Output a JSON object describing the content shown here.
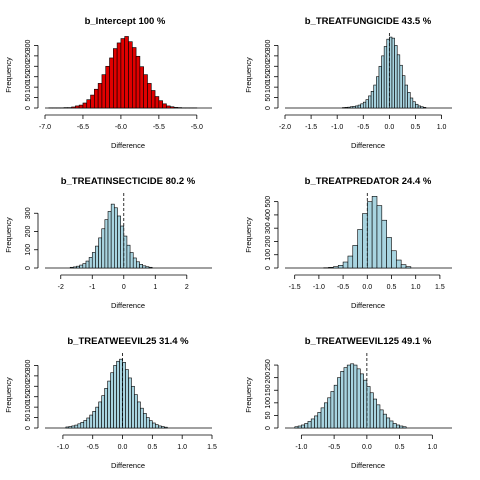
{
  "chart_data": [
    {
      "type": "bar",
      "title": "b_Intercept   100  %",
      "xlabel": "Difference",
      "ylabel": "Frequency",
      "xlim": [
        -7.0,
        -4.8
      ],
      "ylim": [
        0,
        350
      ],
      "xticks": [
        -7.0,
        -6.5,
        -6.0,
        -5.5,
        -5.0
      ],
      "xtick_labels": [
        "-7.0",
        "-6.5",
        "-6.0",
        "-5.5",
        "-5.0"
      ],
      "yticks": [
        0,
        50,
        100,
        150,
        200,
        250,
        300
      ],
      "ytick_labels": [
        "0",
        "50",
        "100",
        "150",
        "200",
        "250",
        "300"
      ],
      "bin_start": -6.95,
      "bin_width": 0.05,
      "counts": [
        1,
        1,
        1,
        1,
        2,
        2,
        5,
        10,
        14,
        24,
        40,
        62,
        90,
        118,
        160,
        200,
        240,
        285,
        312,
        333,
        343,
        318,
        290,
        248,
        198,
        160,
        118,
        84,
        55,
        35,
        20,
        10,
        6,
        3,
        2,
        1,
        1,
        1,
        1
      ],
      "bar_color": "#e00000",
      "dashed_line_at": null
    },
    {
      "type": "bar",
      "title": "b_TREATFUNGICIDE   43.5  %",
      "xlabel": "Difference",
      "ylabel": "Frequency",
      "xlim": [
        -2.0,
        1.2
      ],
      "ylim": [
        0,
        350
      ],
      "xticks": [
        -2.0,
        -1.5,
        -1.0,
        -0.5,
        0.0,
        0.5,
        1.0
      ],
      "xtick_labels": [
        "-2.0",
        "-1.5",
        "-1.0",
        "-0.5",
        "0.0",
        "0.5",
        "1.0"
      ],
      "yticks": [
        0,
        50,
        100,
        150,
        200,
        250,
        300
      ],
      "ytick_labels": [
        "0",
        "50",
        "100",
        "150",
        "200",
        "250",
        "300"
      ],
      "bin_start": -0.9,
      "bin_width": 0.05,
      "counts": [
        2,
        3,
        4,
        6,
        8,
        10,
        14,
        20,
        28,
        40,
        58,
        80,
        110,
        150,
        200,
        250,
        295,
        330,
        340,
        335,
        300,
        255,
        205,
        155,
        110,
        75,
        48,
        30,
        18,
        10,
        6,
        3
      ],
      "bar_color": "#a8d4e0",
      "dashed_line_at": 0
    },
    {
      "type": "bar",
      "title": "b_TREATINSECTICIDE   80.2  %",
      "xlabel": "Difference",
      "ylabel": "Frequency",
      "xlim": [
        -2.5,
        2.8
      ],
      "ylim": [
        0,
        400
      ],
      "xticks": [
        -2,
        -1,
        0,
        1,
        2
      ],
      "xtick_labels": [
        "-2",
        "-1",
        "0",
        "1",
        "2"
      ],
      "yticks": [
        0,
        100,
        200,
        300
      ],
      "ytick_labels": [
        "0",
        "100",
        "200",
        "300"
      ],
      "bin_start": -1.7,
      "bin_width": 0.1,
      "counts": [
        4,
        6,
        10,
        16,
        24,
        38,
        58,
        85,
        120,
        165,
        215,
        265,
        310,
        350,
        330,
        285,
        230,
        175,
        125,
        85,
        55,
        34,
        20,
        12,
        7,
        4
      ],
      "bar_color": "#a8d4e0",
      "dashed_line_at": 0
    },
    {
      "type": "bar",
      "title": "b_TREATPREDATOR   24.4  %",
      "xlabel": "Difference",
      "ylabel": "Frequency",
      "xlim": [
        -1.7,
        1.75
      ],
      "ylim": [
        0,
        550
      ],
      "xticks": [
        -1.5,
        -1.0,
        -0.5,
        0.0,
        0.5,
        1.0,
        1.5
      ],
      "xtick_labels": [
        "-1.5",
        "-1.0",
        "-0.5",
        "0.0",
        "0.5",
        "1.0",
        "1.5"
      ],
      "yticks": [
        0,
        100,
        200,
        300,
        400,
        500
      ],
      "ytick_labels": [
        "0",
        "100",
        "200",
        "300",
        "400",
        "500"
      ],
      "bin_start": -0.9,
      "bin_width": 0.1,
      "counts": [
        2,
        5,
        10,
        20,
        45,
        90,
        170,
        290,
        410,
        500,
        540,
        470,
        360,
        230,
        130,
        60,
        25,
        10
      ],
      "bar_color": "#a8d4e0",
      "dashed_line_at": 0
    },
    {
      "type": "bar",
      "title": "b_TREATWEEVIL25   31.4  %",
      "xlabel": "Difference",
      "ylabel": "Frequency",
      "xlim": [
        -1.3,
        1.5
      ],
      "ylim": [
        0,
        350
      ],
      "xticks": [
        -1.0,
        -0.5,
        0.0,
        0.5,
        1.0,
        1.5
      ],
      "xtick_labels": [
        "-1.0",
        "-0.5",
        "0.0",
        "0.5",
        "1.0",
        "1.5"
      ],
      "yticks": [
        0,
        50,
        100,
        150,
        200,
        250,
        300
      ],
      "ytick_labels": [
        "0",
        "50",
        "100",
        "150",
        "200",
        "250",
        "300"
      ],
      "bin_start": -0.95,
      "bin_width": 0.05,
      "counts": [
        5,
        7,
        10,
        14,
        20,
        27,
        36,
        48,
        62,
        80,
        100,
        125,
        155,
        190,
        225,
        265,
        300,
        320,
        330,
        315,
        280,
        240,
        200,
        160,
        125,
        95,
        70,
        50,
        35,
        24,
        16,
        10,
        7,
        4
      ],
      "bar_color": "#a8d4e0",
      "dashed_line_at": 0
    },
    {
      "type": "bar",
      "title": "b_TREATWEEVIL125   49.1  %",
      "xlabel": "Difference",
      "ylabel": "Frequency",
      "xlim": [
        -1.25,
        1.3
      ],
      "ylim": [
        0,
        290
      ],
      "xticks": [
        -1.0,
        -0.5,
        0.0,
        0.5,
        1.0
      ],
      "xtick_labels": [
        "-1.0",
        "-0.5",
        "0.0",
        "0.5",
        "1.0"
      ],
      "yticks": [
        0,
        50,
        100,
        150,
        200,
        250
      ],
      "ytick_labels": [
        "0",
        "50",
        "100",
        "150",
        "200",
        "250"
      ],
      "bin_start": -1.1,
      "bin_width": 0.05,
      "counts": [
        5,
        8,
        12,
        18,
        26,
        36,
        48,
        62,
        80,
        100,
        120,
        145,
        170,
        200,
        225,
        240,
        250,
        255,
        250,
        235,
        215,
        190,
        165,
        140,
        115,
        92,
        72,
        55,
        40,
        28,
        18,
        12,
        8,
        5
      ],
      "bar_color": "#a8d4e0",
      "dashed_line_at": 0
    }
  ]
}
